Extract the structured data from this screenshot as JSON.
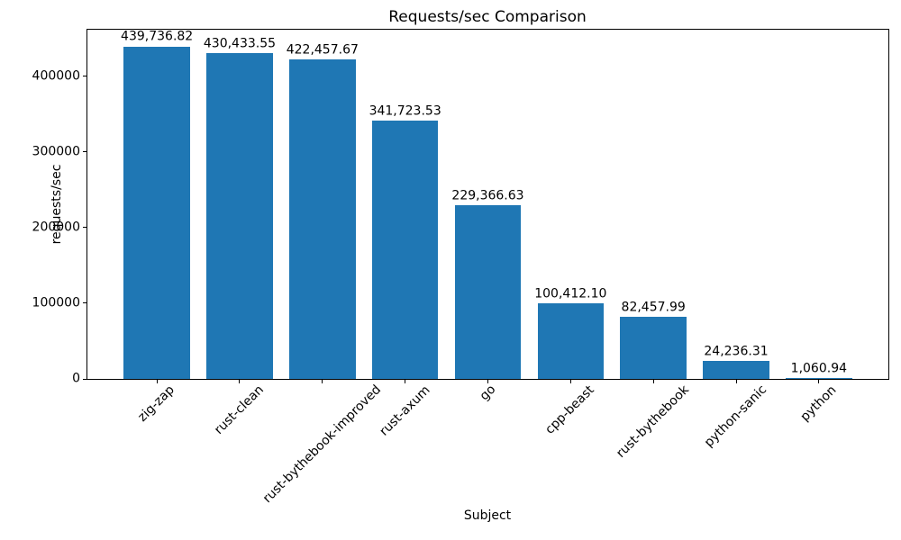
{
  "chart_data": {
    "type": "bar",
    "title": "Requests/sec Comparison",
    "xlabel": "Subject",
    "ylabel": "requests/sec",
    "categories": [
      "zig-zap",
      "rust-clean",
      "rust-bythebook-improved",
      "rust-axum",
      "go",
      "cpp-beast",
      "rust-bythebook",
      "python-sanic",
      "python"
    ],
    "values": [
      439736.82,
      430433.55,
      422457.67,
      341723.53,
      229366.63,
      100412.1,
      82457.99,
      24236.31,
      1060.94
    ],
    "value_labels": [
      "439,736.82",
      "430,433.55",
      "422,457.67",
      "341,723.53",
      "229,366.63",
      "100,412.10",
      "82,457.99",
      "24,236.31",
      "1,060.94"
    ],
    "yticks": [
      0,
      100000,
      200000,
      300000,
      400000
    ],
    "ytick_labels": [
      "0",
      "100000",
      "200000",
      "300000",
      "400000"
    ],
    "ylim": [
      0,
      461724
    ],
    "grid": false,
    "legend": false,
    "bar_color": "#1f77b4",
    "text_color": "#000000",
    "background": "#ffffff"
  }
}
